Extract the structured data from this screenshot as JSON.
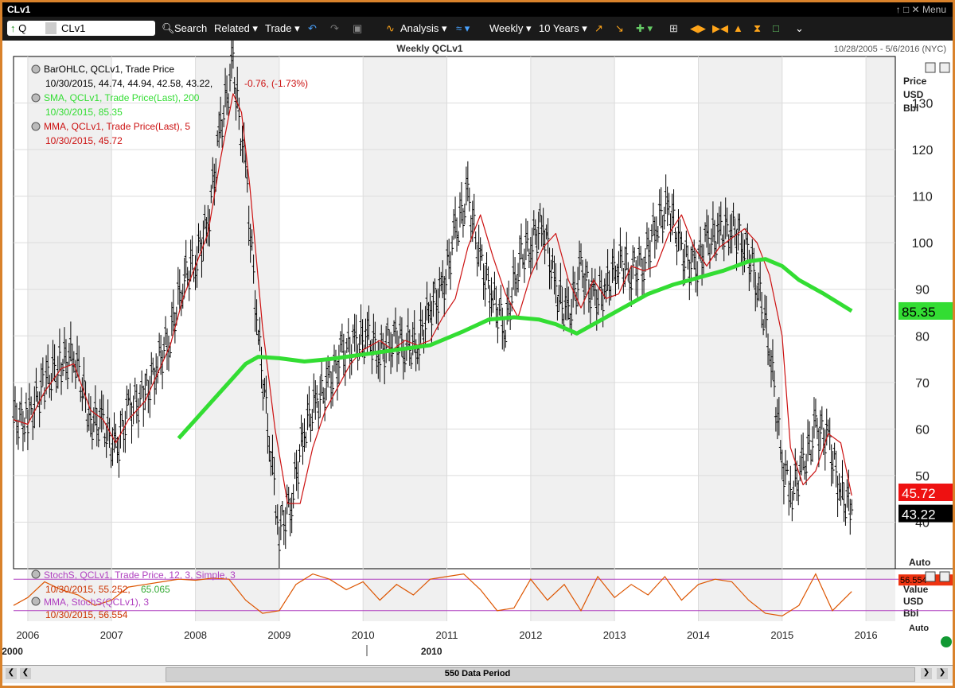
{
  "window": {
    "title": "CLv1",
    "menu_label": "Menu",
    "controls": "↑ □ ✕"
  },
  "toolbar": {
    "symbol_type": "Q",
    "symbol": "CLv1",
    "search": "Search",
    "related": "Related",
    "trade": "Trade",
    "analysis": "Analysis",
    "interval": "Weekly",
    "range": "10 Years"
  },
  "chart_header": {
    "title": "Weekly QCLv1",
    "date_range": "10/28/2005 - 5/6/2016 (NYC)"
  },
  "legend": {
    "bar_label": "BarOHLC, QCLv1, Trade Price",
    "bar_values": "10/30/2015, 44.74, 44.94, 42.58, 43.22,",
    "bar_change": "-0.76, (-1.73%)",
    "sma_label": "SMA, QCLv1, Trade Price(Last),  200",
    "sma_values": "10/30/2015, 85.35",
    "mma_label": "MMA, QCLv1, Trade Price(Last),  5",
    "mma_values": "10/30/2015, 45.72",
    "stoch_label": "StochS, QCLv1, Trade Price,  12, 3, Simple, 3",
    "stoch_values_a": "10/30/2015, 55.252,",
    "stoch_values_b": "65.065",
    "stoch_mma_label": "MMA, StochS(QCLv1),  3",
    "stoch_mma_values": "10/30/2015, 56.554"
  },
  "right_axis": {
    "unit_lines": [
      "Price",
      "USD",
      "Bbl"
    ],
    "lower_unit_lines": [
      "Value",
      "USD",
      "Bbl"
    ],
    "auto": "Auto",
    "auto_lower": "Auto",
    "tag_sma": "85.35",
    "tag_mma": "45.72",
    "tag_last": "43.22",
    "tag_stoch": "56.554"
  },
  "scrollbar": {
    "label": "550 Data Period"
  },
  "colors": {
    "sma": "#33dd33",
    "mma": "#cc1111",
    "stoch": "#dd5500",
    "stoch_ref": "#b040c0",
    "shade": "#f0f0f0"
  },
  "chart_data": [
    {
      "type": "line",
      "title": "Weekly QCLv1",
      "ylabel": "Price USD Bbl",
      "ylim": [
        30,
        140
      ],
      "yticks": [
        40,
        50,
        60,
        70,
        80,
        90,
        100,
        110,
        120,
        130
      ],
      "xticks": [
        "2006",
        "2007",
        "2008",
        "2009",
        "2010",
        "2011",
        "2012",
        "2013",
        "2014",
        "2015",
        "2016"
      ],
      "era_labels": [
        {
          "label": "2000",
          "x": 2008.0
        },
        {
          "label": "2010",
          "x": 2013.0
        }
      ],
      "grid": true,
      "series": [
        {
          "name": "BarOHLC, QCLv1, Trade Price",
          "kind": "ohlc-close",
          "x": [
            2005.83,
            2006.0,
            2006.2,
            2006.4,
            2006.55,
            2006.75,
            2006.9,
            2007.05,
            2007.2,
            2007.4,
            2007.55,
            2007.7,
            2007.85,
            2008.0,
            2008.15,
            2008.3,
            2008.45,
            2008.5,
            2008.6,
            2008.75,
            2008.9,
            2009.0,
            2009.15,
            2009.3,
            2009.45,
            2009.6,
            2009.75,
            2009.9,
            2010.05,
            2010.2,
            2010.35,
            2010.5,
            2010.65,
            2010.8,
            2010.95,
            2011.1,
            2011.25,
            2011.4,
            2011.55,
            2011.7,
            2011.85,
            2012.0,
            2012.15,
            2012.3,
            2012.45,
            2012.6,
            2012.75,
            2012.9,
            2013.05,
            2013.2,
            2013.35,
            2013.5,
            2013.65,
            2013.8,
            2013.95,
            2014.1,
            2014.25,
            2014.4,
            2014.55,
            2014.7,
            2014.85,
            2015.0,
            2015.1,
            2015.25,
            2015.4,
            2015.55,
            2015.7,
            2015.83
          ],
          "values": [
            62,
            62,
            70,
            74,
            76,
            62,
            61,
            55,
            64,
            67,
            74,
            80,
            92,
            96,
            104,
            125,
            138,
            130,
            115,
            80,
            55,
            38,
            45,
            60,
            66,
            70,
            76,
            78,
            80,
            76,
            80,
            78,
            78,
            86,
            90,
            102,
            110,
            96,
            88,
            82,
            96,
            100,
            104,
            90,
            84,
            94,
            88,
            90,
            96,
            94,
            96,
            104,
            108,
            98,
            94,
            100,
            102,
            103,
            100,
            92,
            78,
            53,
            46,
            52,
            60,
            58,
            46,
            43.22
          ]
        },
        {
          "name": "SMA, QCLv1, Trade Price(Last),  200",
          "x": [
            2007.8,
            2008.0,
            2008.2,
            2008.4,
            2008.6,
            2008.75,
            2009.0,
            2009.3,
            2009.6,
            2010.0,
            2010.4,
            2010.8,
            2011.2,
            2011.5,
            2011.8,
            2012.1,
            2012.3,
            2012.55,
            2012.8,
            2013.1,
            2013.4,
            2013.7,
            2014.0,
            2014.3,
            2014.6,
            2014.8,
            2015.0,
            2015.2,
            2015.5,
            2015.83
          ],
          "values": [
            58,
            62,
            66,
            70,
            74,
            75.5,
            75.2,
            74.5,
            75,
            76,
            77,
            78,
            81,
            83.5,
            84,
            83.5,
            82.5,
            80.5,
            83,
            86,
            89,
            91,
            92.5,
            94,
            96,
            96.5,
            95,
            92,
            89,
            85.35
          ]
        },
        {
          "name": "MMA, QCLv1, Trade Price(Last),  5",
          "x": [
            2005.83,
            2006.0,
            2006.2,
            2006.4,
            2006.55,
            2006.75,
            2006.9,
            2007.05,
            2007.2,
            2007.4,
            2007.55,
            2007.7,
            2007.85,
            2008.0,
            2008.15,
            2008.3,
            2008.45,
            2008.55,
            2008.65,
            2008.8,
            2008.95,
            2009.1,
            2009.25,
            2009.4,
            2009.55,
            2009.7,
            2009.85,
            2010.0,
            2010.2,
            2010.35,
            2010.5,
            2010.65,
            2010.8,
            2010.95,
            2011.1,
            2011.25,
            2011.4,
            2011.55,
            2011.7,
            2011.85,
            2012.0,
            2012.15,
            2012.3,
            2012.45,
            2012.6,
            2012.75,
            2012.9,
            2013.05,
            2013.2,
            2013.35,
            2013.5,
            2013.65,
            2013.8,
            2013.95,
            2014.1,
            2014.25,
            2014.4,
            2014.55,
            2014.7,
            2014.85,
            2015.0,
            2015.1,
            2015.25,
            2015.4,
            2015.55,
            2015.7,
            2015.83
          ],
          "values": [
            62,
            61,
            68,
            73,
            74,
            64,
            62,
            57,
            62,
            66,
            72,
            78,
            88,
            95,
            102,
            118,
            132,
            128,
            112,
            82,
            60,
            44,
            44,
            56,
            64,
            69,
            74,
            77,
            79,
            77,
            79,
            78,
            79,
            84,
            88,
            99,
            106,
            97,
            89,
            84,
            93,
            99,
            102,
            92,
            86,
            92,
            88,
            89,
            95,
            94,
            95,
            102,
            106,
            99,
            95,
            99,
            101,
            103,
            100,
            93,
            80,
            56,
            48,
            51,
            59,
            57,
            45.72
          ]
        }
      ]
    },
    {
      "type": "line",
      "title": "StochS, QCLv1, Trade Price,  12, 3, Simple, 3",
      "ylabel": "Value USD Bbl",
      "ylim": [
        0,
        100
      ],
      "reference_lines": [
        80,
        20
      ],
      "series": [
        {
          "name": "MMA, StochS(QCLv1),  3",
          "x": [
            2005.83,
            2006.0,
            2006.2,
            2006.4,
            2006.6,
            2006.8,
            2007.0,
            2007.2,
            2007.4,
            2007.6,
            2007.8,
            2008.0,
            2008.2,
            2008.4,
            2008.6,
            2008.8,
            2009.0,
            2009.2,
            2009.4,
            2009.6,
            2009.8,
            2010.0,
            2010.2,
            2010.4,
            2010.6,
            2010.8,
            2011.0,
            2011.2,
            2011.4,
            2011.6,
            2011.8,
            2012.0,
            2012.2,
            2012.4,
            2012.6,
            2012.8,
            2013.0,
            2013.2,
            2013.4,
            2013.6,
            2013.8,
            2014.0,
            2014.2,
            2014.4,
            2014.6,
            2014.8,
            2015.0,
            2015.2,
            2015.4,
            2015.6,
            2015.83
          ],
          "values": [
            30,
            45,
            75,
            60,
            50,
            30,
            40,
            65,
            70,
            75,
            80,
            78,
            82,
            80,
            40,
            15,
            20,
            70,
            90,
            80,
            60,
            75,
            40,
            70,
            50,
            80,
            85,
            90,
            60,
            20,
            25,
            80,
            40,
            70,
            20,
            85,
            45,
            70,
            50,
            85,
            40,
            70,
            80,
            75,
            40,
            15,
            10,
            30,
            90,
            20,
            56.554
          ]
        }
      ]
    }
  ]
}
